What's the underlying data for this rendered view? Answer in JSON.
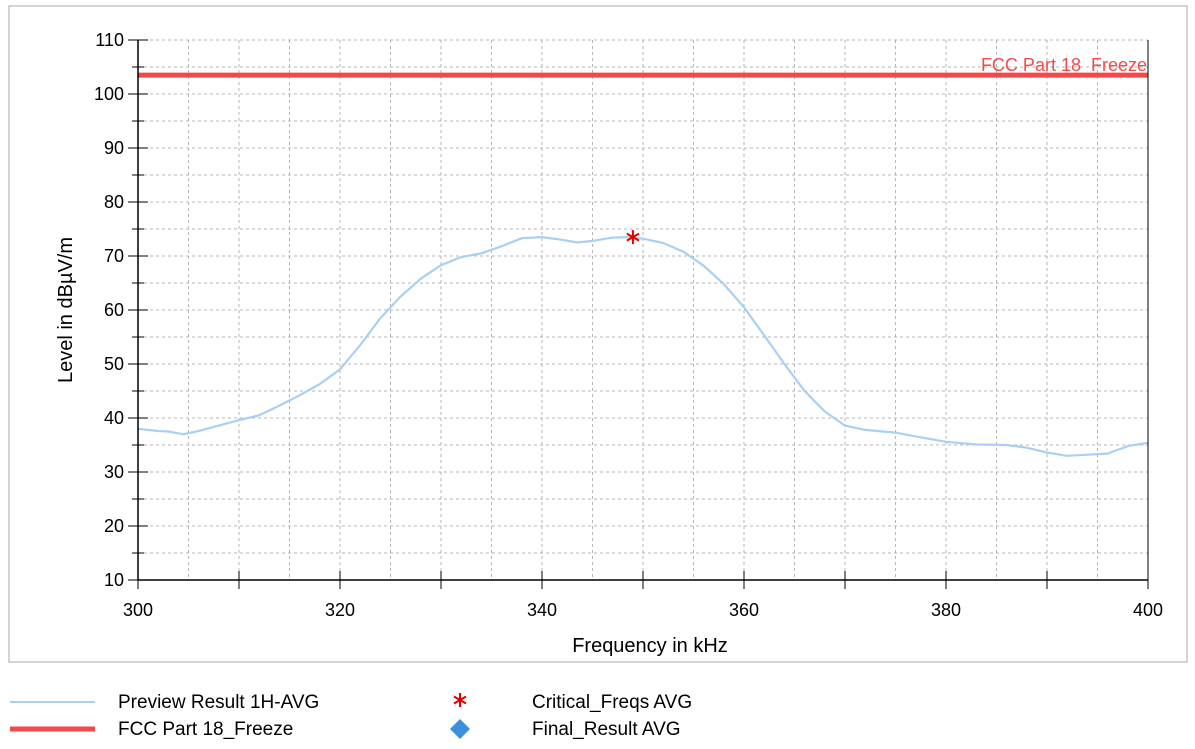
{
  "chart_data": {
    "type": "line",
    "title": "",
    "xlabel": "Frequency in kHz",
    "ylabel": "Level in dBµV/m",
    "xlim": [
      300,
      400
    ],
    "ylim": [
      10,
      110
    ],
    "x_ticks": [
      300,
      320,
      340,
      360,
      380,
      400
    ],
    "x_minor_step": 10,
    "y_ticks": [
      10,
      20,
      30,
      40,
      50,
      60,
      70,
      80,
      90,
      100,
      110
    ],
    "grid": true,
    "legend_position": "bottom",
    "series": [
      {
        "name": "Preview Result 1H-AVG",
        "kind": "line",
        "color": "#a9cff2",
        "points": [
          [
            300,
            38
          ],
          [
            302,
            37.6
          ],
          [
            303,
            37.5
          ],
          [
            304.5,
            37
          ],
          [
            306,
            37.6
          ],
          [
            308,
            38.6
          ],
          [
            310,
            39.6
          ],
          [
            312,
            40.5
          ],
          [
            314,
            42.3
          ],
          [
            316,
            44.2
          ],
          [
            318,
            46.3
          ],
          [
            320,
            49
          ],
          [
            322,
            53.5
          ],
          [
            324,
            58.5
          ],
          [
            326,
            62.5
          ],
          [
            328,
            65.8
          ],
          [
            330,
            68.3
          ],
          [
            332,
            69.8
          ],
          [
            334,
            70.5
          ],
          [
            336,
            71.8
          ],
          [
            338,
            73.3
          ],
          [
            340,
            73.5
          ],
          [
            342,
            73
          ],
          [
            343.5,
            72.5
          ],
          [
            345,
            72.8
          ],
          [
            347,
            73.4
          ],
          [
            348.5,
            73.5
          ],
          [
            350,
            73.2
          ],
          [
            352,
            72.4
          ],
          [
            354,
            70.8
          ],
          [
            356,
            68.2
          ],
          [
            358,
            64.8
          ],
          [
            360,
            60.5
          ],
          [
            362,
            55.3
          ],
          [
            364,
            50
          ],
          [
            366,
            45
          ],
          [
            368,
            41.2
          ],
          [
            370,
            38.6
          ],
          [
            372,
            37.8
          ],
          [
            375,
            37.3
          ],
          [
            377,
            36.6
          ],
          [
            380,
            35.6
          ],
          [
            383,
            35.1
          ],
          [
            386,
            35
          ],
          [
            388,
            34.5
          ],
          [
            390,
            33.6
          ],
          [
            392,
            33
          ],
          [
            394,
            33.2
          ],
          [
            396,
            33.4
          ],
          [
            398,
            34.8
          ],
          [
            400,
            35.4
          ]
        ]
      },
      {
        "name": "FCC Part 18_Freeze",
        "kind": "limit",
        "color": "#f24a4a",
        "label": "FCC Part 18_Freeze",
        "points": [
          [
            300,
            103.5
          ],
          [
            400,
            103.5
          ]
        ]
      },
      {
        "name": "Critical_Freqs AVG",
        "kind": "marker",
        "marker": "asterisk",
        "color": "#e00000",
        "points": [
          [
            349,
            73.5
          ]
        ]
      },
      {
        "name": "Final_Result AVG",
        "kind": "marker",
        "marker": "diamond",
        "color": "#3d8fdc",
        "points": []
      }
    ]
  }
}
